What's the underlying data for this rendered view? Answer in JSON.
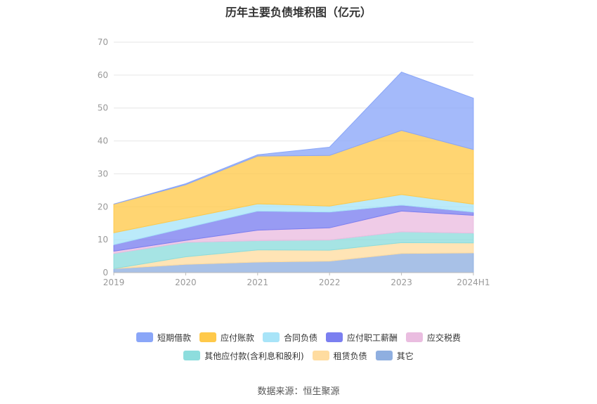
{
  "title": "历年主要负债堆积图（亿元）",
  "source": "数据来源：恒生聚源",
  "chart_data": {
    "type": "area",
    "stacked": true,
    "categories": [
      "2019",
      "2020",
      "2021",
      "2022",
      "2023",
      "2024H1"
    ],
    "ylim": [
      0,
      70
    ],
    "yticks": [
      0,
      10,
      20,
      30,
      40,
      50,
      60,
      70
    ],
    "grid": true,
    "legend_position": "bottom",
    "series": [
      {
        "name": "其它",
        "color": "#8fafe0",
        "values": [
          1.2,
          2.5,
          3.2,
          3.5,
          5.8,
          6.0
        ]
      },
      {
        "name": "租赁负债",
        "color": "#ffdca0",
        "values": [
          0.0,
          2.3,
          3.7,
          3.3,
          3.3,
          3.0
        ]
      },
      {
        "name": "其他应付款(含利息和股利)",
        "color": "#8ddddd",
        "values": [
          4.6,
          4.4,
          2.8,
          3.1,
          3.3,
          3.0
        ]
      },
      {
        "name": "应交税费",
        "color": "#eabde0",
        "values": [
          0.7,
          0.6,
          3.2,
          3.7,
          6.3,
          5.4
        ]
      },
      {
        "name": "应付职工薪酬",
        "color": "#7b7ff0",
        "values": [
          2.0,
          3.8,
          5.8,
          4.8,
          1.8,
          1.0
        ]
      },
      {
        "name": "合同负债",
        "color": "#a8e4f8",
        "values": [
          3.6,
          2.9,
          2.2,
          1.8,
          3.2,
          2.4
        ]
      },
      {
        "name": "应付账款",
        "color": "#ffc94a",
        "values": [
          8.7,
          10.2,
          14.5,
          15.4,
          19.5,
          16.6
        ]
      },
      {
        "name": "短期借款",
        "color": "#8aa6f8",
        "values": [
          0.0,
          0.3,
          0.4,
          2.5,
          17.7,
          15.6
        ]
      }
    ],
    "legend_rows": [
      [
        "短期借款",
        "应付账款",
        "合同负债",
        "应付职工薪酬",
        "应交税费"
      ],
      [
        "其他应付款(含利息和股利)",
        "租赁负债",
        "其它"
      ]
    ]
  }
}
